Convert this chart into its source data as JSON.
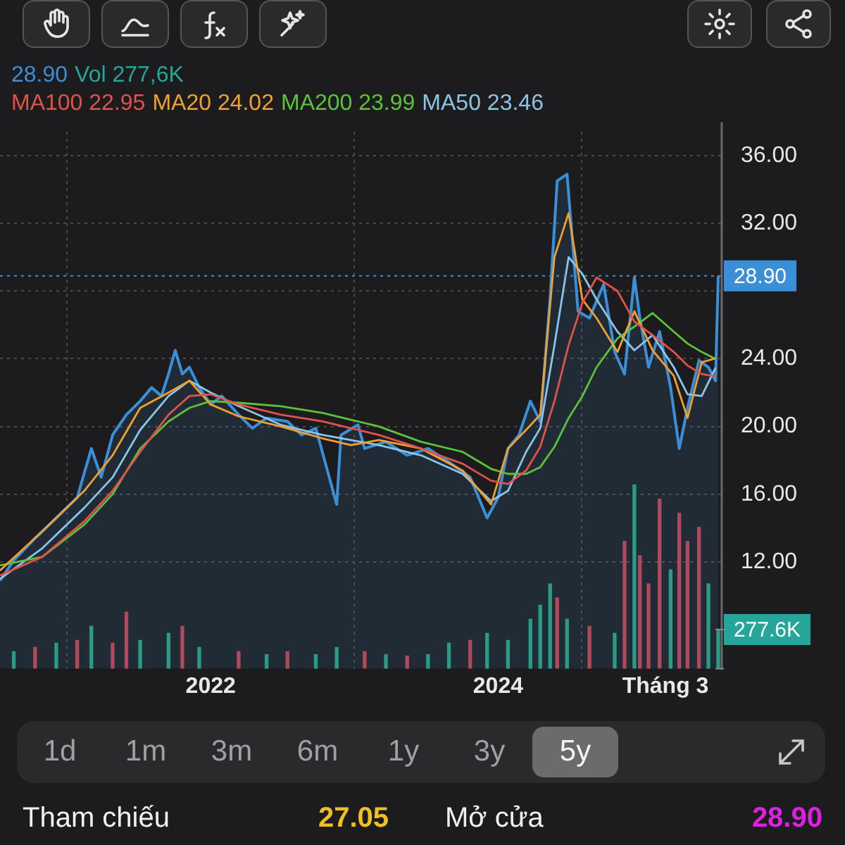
{
  "chart_data": {
    "type": "line",
    "x": [
      "2020-07-15",
      "2020-10-30",
      "2021-02-14",
      "2021-04-27",
      "2021-07-06",
      "2021-09-16",
      "2021-11-08",
      "2022-01-01",
      "2022-03-13",
      "2022-06-28",
      "2022-10-12",
      "2022-12-23",
      "2023-03-04",
      "2023-06-19",
      "2023-10-03",
      "2023-12-14",
      "2024-01-26",
      "2024-03-12",
      "2024-04-17",
      "2024-05-23",
      "2024-06-28",
      "2024-08-02",
      "2024-09-07",
      "2024-10-30",
      "2024-12-12",
      "2025-01-27",
      "2025-03-22",
      "2025-04-26",
      "2025-06-01",
      "2025-07-06"
    ],
    "series": [
      {
        "type": "area",
        "color": "#3b8fd6",
        "x": [
          "2020-07-15",
          "2020-08-19",
          "2020-10-12",
          "2020-12-05",
          "2021-01-27",
          "2021-03-04",
          "2021-03-29",
          "2021-04-27",
          "2021-06-01",
          "2021-07-06",
          "2021-08-04",
          "2021-08-29",
          "2021-09-16",
          "2021-10-03",
          "2021-10-21",
          "2021-11-08",
          "2021-12-03",
          "2022-01-01",
          "2022-01-29",
          "2022-03-13",
          "2022-04-17",
          "2022-05-23",
          "2022-07-15",
          "2022-08-20",
          "2022-09-25",
          "2022-11-17",
          "2022-11-28",
          "2023-01-10",
          "2023-01-27",
          "2023-03-22",
          "2023-05-15",
          "2023-07-07",
          "2023-08-29",
          "2023-10-22",
          "2023-12-04",
          "2024-01-01",
          "2024-01-26",
          "2024-02-23",
          "2024-03-23",
          "2024-04-17",
          "2024-05-12",
          "2024-05-30",
          "2024-06-24",
          "2024-07-08",
          "2024-07-22",
          "2024-08-20",
          "2024-09-25",
          "2024-10-23",
          "2024-11-17",
          "2024-12-12",
          "2024-12-26",
          "2025-01-17",
          "2025-02-14",
          "2025-03-14",
          "2025-04-05",
          "2025-04-26",
          "2025-05-25",
          "2025-06-18",
          "2025-07-06",
          "2025-07-13"
        ],
        "values": [
          10.9,
          12.1,
          13.4,
          14.6,
          15.8,
          18.7,
          17.0,
          19.5,
          20.7,
          21.5,
          22.3,
          21.8,
          23.1,
          24.5,
          23.1,
          23.5,
          22.3,
          21.3,
          21.8,
          20.7,
          19.9,
          20.5,
          20.3,
          19.5,
          19.9,
          15.4,
          19.5,
          20.1,
          18.7,
          19.1,
          18.3,
          18.7,
          17.9,
          17.0,
          14.6,
          15.8,
          18.7,
          19.5,
          21.5,
          20.3,
          27.6,
          34.5,
          34.9,
          30.9,
          26.8,
          26.4,
          28.4,
          24.4,
          23.1,
          28.8,
          26.4,
          23.5,
          25.6,
          22.3,
          18.7,
          21.1,
          23.9,
          23.5,
          22.7,
          28.9
        ]
      },
      {
        "name": "Vol",
        "type": "bar",
        "axis": "y2",
        "color": "#26a69a",
        "x": [
          "2020-08-19",
          "2020-10-12",
          "2020-12-05",
          "2021-01-27",
          "2021-03-04",
          "2021-04-27",
          "2021-06-01",
          "2021-07-06",
          "2021-09-16",
          "2021-10-21",
          "2021-12-03",
          "2022-03-13",
          "2022-05-23",
          "2022-07-15",
          "2022-09-25",
          "2022-11-17",
          "2023-01-27",
          "2023-03-22",
          "2023-05-15",
          "2023-07-07",
          "2023-08-29",
          "2023-10-22",
          "2023-12-04",
          "2024-01-26",
          "2024-03-23",
          "2024-04-17",
          "2024-05-12",
          "2024-05-30",
          "2024-06-24",
          "2024-08-20",
          "2024-10-23",
          "2024-11-17",
          "2024-12-12",
          "2024-12-26",
          "2025-01-17",
          "2025-02-14",
          "2025-03-14",
          "2025-04-05",
          "2025-04-26",
          "2025-05-25",
          "2025-06-18",
          "2025-07-13"
        ],
        "values": [
          120,
          150,
          180,
          200,
          300,
          180,
          400,
          200,
          250,
          300,
          150,
          120,
          100,
          120,
          100,
          150,
          120,
          100,
          90,
          100,
          180,
          200,
          250,
          200,
          350,
          450,
          600,
          500,
          350,
          300,
          250,
          900,
          1300,
          800,
          600,
          1200,
          700,
          1100,
          900,
          1000,
          600,
          277.6
        ],
        "colors": [
          "#2a9d7a",
          "#c0404a",
          "#2a9d7a",
          "#c0404a",
          "#2a9d7a",
          "#c0404a",
          "#c0404a",
          "#2a9d7a",
          "#2a9d7a",
          "#c0404a",
          "#2a9d7a",
          "#c0404a",
          "#2a9d7a",
          "#c0404a",
          "#2a9d7a",
          "#2a9d7a",
          "#c0404a",
          "#2a9d7a",
          "#c0404a",
          "#2a9d7a",
          "#2a9d7a",
          "#c0404a",
          "#2a9d7a",
          "#2a9d7a",
          "#2a9d7a",
          "#2a9d7a",
          "#2a9d7a",
          "#c0404a",
          "#2a9d7a",
          "#c0404a",
          "#2a9d7a",
          "#c0404a",
          "#2a9d7a",
          "#c0404a",
          "#c0404a",
          "#c0404a",
          "#2a9d7a",
          "#c0404a",
          "#c0404a",
          "#c0404a",
          "#2a9d7a",
          "#2a9d7a"
        ]
      },
      {
        "name": "MA100",
        "color": "#e0524a",
        "values": [
          11.2,
          12.3,
          14.4,
          16.2,
          18.5,
          20.7,
          21.8,
          21.9,
          21.3,
          20.7,
          20.3,
          19.9,
          19.5,
          18.7,
          17.8,
          16.8,
          16.6,
          17.4,
          18.8,
          21.5,
          24.8,
          27.3,
          28.8,
          28.0,
          26.2,
          25.4,
          24.4,
          23.6,
          23.1,
          22.95
        ]
      },
      {
        "name": "MA20",
        "color": "#f0a030",
        "values": [
          11.5,
          13.8,
          16.2,
          18.3,
          21.1,
          22.0,
          22.7,
          21.3,
          20.6,
          20.0,
          19.3,
          18.9,
          19.2,
          18.7,
          17.4,
          15.4,
          18.7,
          19.8,
          20.7,
          30.0,
          32.6,
          27.5,
          26.4,
          24.4,
          26.8,
          24.5,
          23.0,
          20.5,
          23.8,
          24.02
        ]
      },
      {
        "name": "MA200",
        "color": "#5cc23a",
        "values": [
          11.8,
          12.3,
          14.2,
          16.0,
          18.7,
          20.3,
          21.1,
          21.5,
          21.4,
          21.2,
          20.8,
          20.4,
          20.0,
          19.1,
          18.5,
          17.5,
          17.2,
          17.2,
          17.6,
          18.8,
          20.5,
          21.8,
          23.5,
          25.2,
          25.9,
          26.7,
          25.6,
          24.9,
          24.4,
          23.99
        ]
      },
      {
        "name": "MA50",
        "color": "#8cc4e8",
        "values": [
          11.0,
          12.8,
          15.2,
          17.0,
          19.8,
          21.8,
          22.7,
          22.0,
          21.2,
          20.1,
          19.5,
          19.2,
          18.9,
          18.3,
          17.2,
          15.6,
          16.2,
          18.5,
          19.9,
          24.8,
          30.0,
          29.0,
          27.5,
          25.6,
          24.5,
          25.4,
          23.5,
          21.9,
          21.8,
          23.46
        ]
      }
    ],
    "xlim": [
      "2020-07-15",
      "2025-07-20"
    ],
    "xticks": [
      {
        "value": "2022-01-01",
        "label": "2022"
      },
      {
        "value": "2024-01-01",
        "label": "2024"
      },
      {
        "value": "2025-03-01",
        "label": "Tháng 3"
      }
    ],
    "ylim": [
      5.7,
      37.4
    ],
    "yticks": [
      {
        "value": 12,
        "label": "12.00"
      },
      {
        "value": 16,
        "label": "16.00"
      },
      {
        "value": 20,
        "label": "20.00"
      },
      {
        "value": 24,
        "label": "24.00"
      },
      {
        "value": 28,
        "label": null
      },
      {
        "value": 32,
        "label": "32.00"
      },
      {
        "value": 36,
        "label": "36.00"
      }
    ],
    "y2lim": [
      0,
      3800
    ],
    "y2ticks": [
      {
        "value": 0,
        "label": null
      },
      {
        "value": 277.6,
        "label": "277.6K"
      }
    ],
    "ref_lines": [
      {
        "axis": "y",
        "value": 28.9,
        "label": "28.90",
        "color": "#3b8fd6",
        "line_style": "dotted"
      }
    ],
    "grid": true,
    "legend": "top",
    "marker": "none",
    "line_style": "solid",
    "annotations": [
      "1d",
      "1m",
      "3m",
      "6m",
      "1y",
      "3y",
      "5y",
      "Tham chiếu",
      "27.05",
      "Mở cửa",
      "28.90",
      "28.90",
      "277,6K",
      "22.95",
      "24.02",
      "23.99",
      "23.46"
    ]
  }
}
